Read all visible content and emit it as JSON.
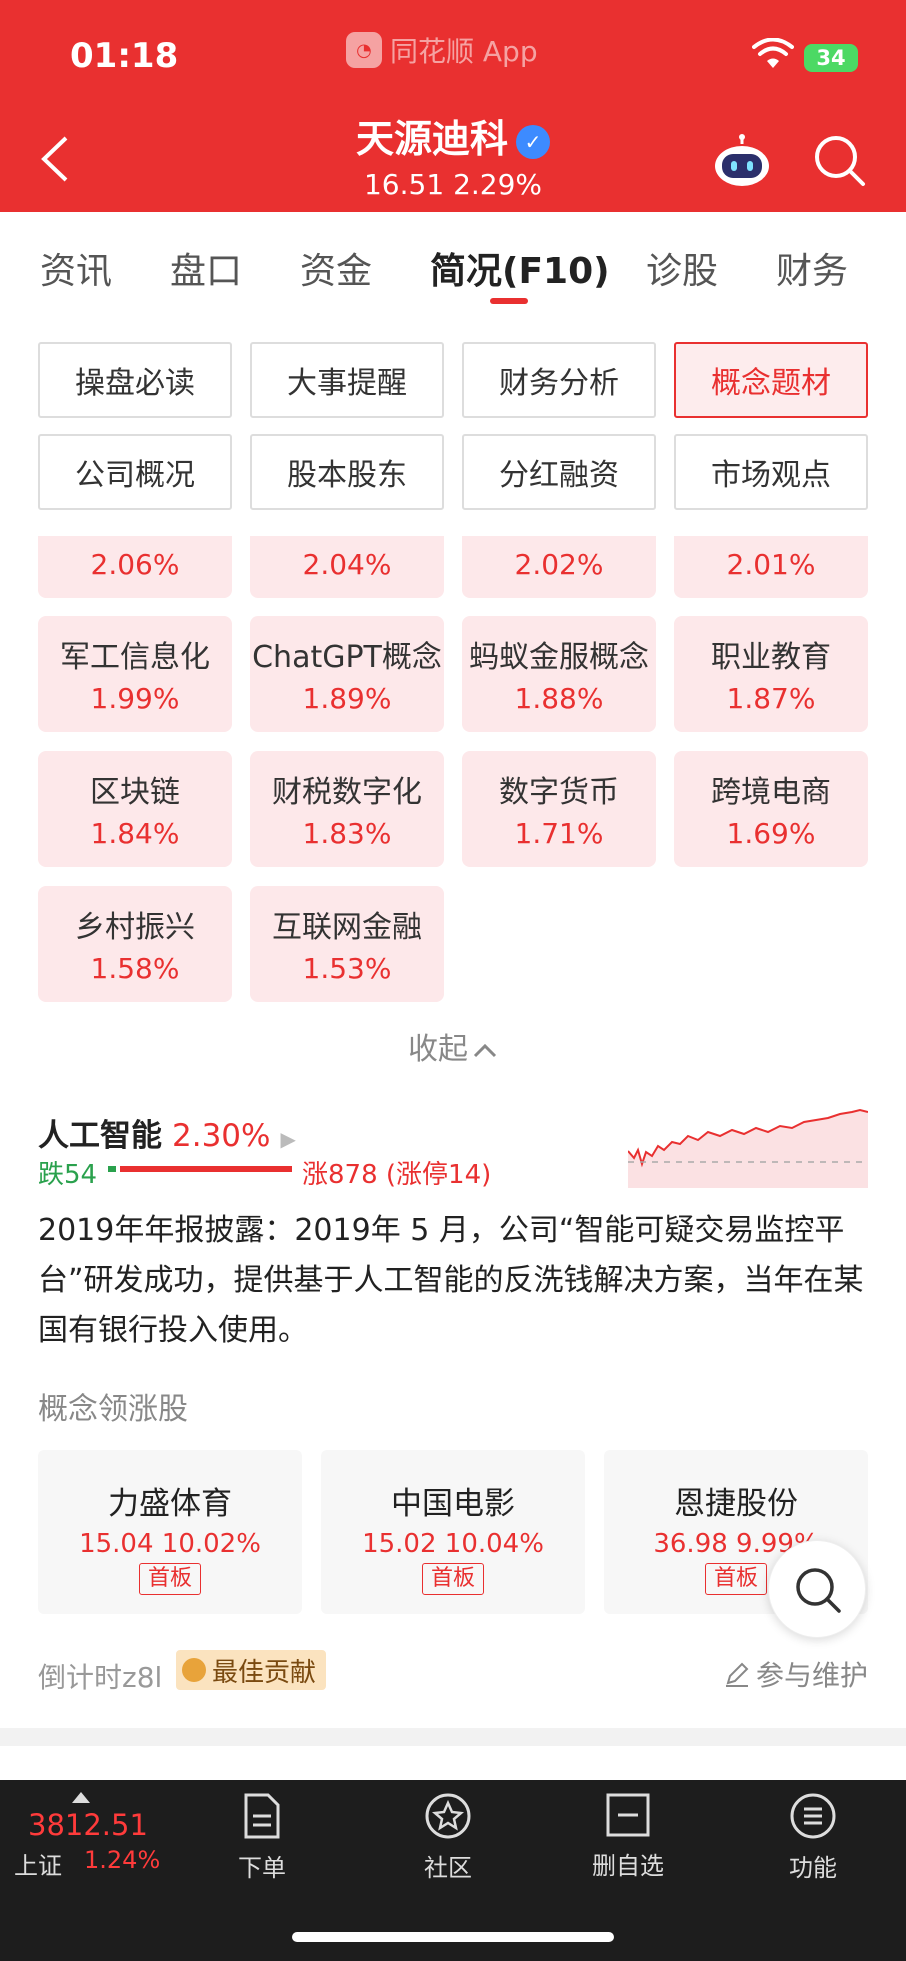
{
  "status": {
    "time": "01:18",
    "app": "同花顺 App",
    "battery": "34"
  },
  "stock": {
    "name": "天源迪科",
    "price": "16.51",
    "change": "2.29%"
  },
  "tabs": [
    "资讯",
    "盘口",
    "资金",
    "简况(F10)",
    "诊股",
    "财务"
  ],
  "active_tab": "简况(F10)",
  "sub_buttons": [
    "操盘必读",
    "大事提醒",
    "财务分析",
    "概念题材",
    "公司概况",
    "股本股东",
    "分红融资",
    "市场观点"
  ],
  "active_sub": "概念题材",
  "concept_tags_partial": [
    "2.06%",
    "2.04%",
    "2.02%",
    "2.01%"
  ],
  "concept_tags": [
    {
      "name": "军工信息化",
      "pct": "1.99%"
    },
    {
      "name": "ChatGPT概念",
      "pct": "1.89%"
    },
    {
      "name": "蚂蚁金服概念",
      "pct": "1.88%"
    },
    {
      "name": "职业教育",
      "pct": "1.87%"
    },
    {
      "name": "区块链",
      "pct": "1.84%"
    },
    {
      "name": "财税数字化",
      "pct": "1.83%"
    },
    {
      "name": "数字货币",
      "pct": "1.71%"
    },
    {
      "name": "跨境电商",
      "pct": "1.69%"
    },
    {
      "name": "乡村振兴",
      "pct": "1.58%"
    },
    {
      "name": "互联网金融",
      "pct": "1.53%"
    }
  ],
  "collapse_label": "收起",
  "concept": {
    "name": "人工智能",
    "pct": "2.30%",
    "down": "跌54",
    "up": "涨878 (涨停14)",
    "down_count": 54,
    "up_count": 878,
    "description": "2019年年报披露：2019年 5 月，公司“智能可疑交易监控平台”研发成功，提供基于人工智能的反洗钱解决方案，当年在某国有银行投入使用。"
  },
  "leaders_title": "概念领涨股",
  "leaders": [
    {
      "name": "力盛体育",
      "price": "15.04",
      "pct": "10.02%",
      "badge": "首板"
    },
    {
      "name": "中国电影",
      "price": "15.02",
      "pct": "10.04%",
      "badge": "首板"
    },
    {
      "name": "恩捷股份",
      "price": "36.98",
      "pct": "9.99%",
      "badge": "首板"
    }
  ],
  "footer": {
    "countdown": "倒计时z8l",
    "best": "最佳贡献",
    "maintain": "参与维护"
  },
  "index": {
    "value": "3812.51",
    "name": "上证",
    "pct": "1.24%"
  },
  "bottom_nav": [
    "下单",
    "社区",
    "删自选",
    "功能"
  ],
  "colors": {
    "brand_red": "#e93030",
    "down_green": "#2aa14d",
    "tag_bg": "#fde8ea",
    "bar_bg": "#1d1d1d"
  }
}
